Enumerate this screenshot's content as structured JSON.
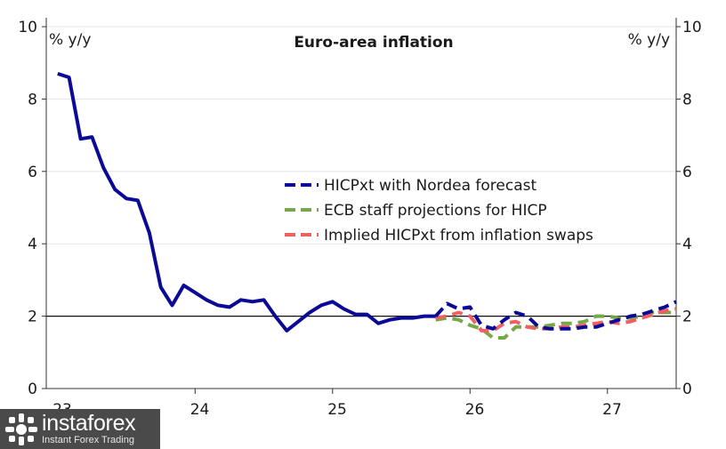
{
  "chart_data": {
    "type": "line",
    "title": "Euro-area inflation",
    "ylabel_left": "% y/y",
    "ylabel_right": "% y/y",
    "ylim": [
      0,
      10
    ],
    "yticks": [
      0,
      2,
      4,
      6,
      8,
      10
    ],
    "xlim": [
      2022.917,
      2027.5
    ],
    "xtick_labels": [
      {
        "label": "23",
        "x": 2023.5
      },
      {
        "label": "24",
        "x": 2024.5
      },
      {
        "label": "25",
        "x": 2025.5
      },
      {
        "label": "26",
        "x": 2026.5
      },
      {
        "label": "27",
        "x": 2027.5
      }
    ],
    "year_boundaries": [
      2024.0,
      2025.0,
      2026.0,
      2027.0,
      2028.0
    ],
    "reference_line_y": 2,
    "legend_position": "center-right",
    "series": [
      {
        "name": "HICPxt with Nordea forecast",
        "color": "#0a0a96",
        "style": "solid",
        "x": [
          2023.0,
          2023.083,
          2023.167,
          2023.25,
          2023.333,
          2023.417,
          2023.5,
          2023.583,
          2023.667,
          2023.75,
          2023.833,
          2023.917,
          2024.0,
          2024.083,
          2024.167,
          2024.25,
          2024.333,
          2024.417,
          2024.5,
          2024.583,
          2024.667,
          2024.75,
          2024.833,
          2024.917,
          2025.0,
          2025.083,
          2025.167,
          2025.25,
          2025.333,
          2025.417,
          2025.5,
          2025.583,
          2025.667,
          2025.75
        ],
        "values": [
          8.7,
          8.6,
          6.9,
          6.95,
          6.1,
          5.5,
          5.25,
          5.2,
          4.3,
          2.8,
          2.3,
          2.85,
          2.65,
          2.45,
          2.3,
          2.25,
          2.45,
          2.4,
          2.45,
          2.0,
          1.6,
          1.85,
          2.1,
          2.3,
          2.4,
          2.2,
          2.05,
          2.05,
          1.8,
          1.9,
          1.95,
          1.95,
          2.0,
          2.0
        ]
      },
      {
        "name": "HICPxt with Nordea forecast",
        "color": "#0a0a96",
        "style": "dashed",
        "x": [
          2025.75,
          2025.833,
          2025.917,
          2026.0,
          2026.083,
          2026.167,
          2026.25,
          2026.333,
          2026.417,
          2026.5,
          2026.583,
          2026.667,
          2026.75,
          2026.833,
          2026.917,
          2027.0,
          2027.083,
          2027.167,
          2027.25,
          2027.333,
          2027.417,
          2027.5
        ],
        "values": [
          2.0,
          2.35,
          2.2,
          2.25,
          1.75,
          1.65,
          1.9,
          2.1,
          2.0,
          1.7,
          1.65,
          1.65,
          1.65,
          1.7,
          1.7,
          1.8,
          1.9,
          2.0,
          2.05,
          2.15,
          2.25,
          2.4
        ]
      },
      {
        "name": "ECB staff projections for HICP",
        "color": "#76a849",
        "style": "dashed",
        "x": [
          2025.75,
          2025.833,
          2025.917,
          2026.0,
          2026.083,
          2026.167,
          2026.25,
          2026.333,
          2026.417,
          2026.5,
          2026.583,
          2026.667,
          2026.75,
          2026.833,
          2026.917,
          2027.0,
          2027.083,
          2027.167,
          2027.25,
          2027.333,
          2027.417,
          2027.5
        ],
        "values": [
          1.9,
          1.95,
          1.9,
          1.75,
          1.65,
          1.4,
          1.4,
          1.7,
          1.7,
          1.7,
          1.75,
          1.8,
          1.8,
          1.85,
          2.0,
          2.0,
          1.95,
          1.95,
          2.0,
          2.1,
          2.1,
          2.1
        ]
      },
      {
        "name": "Implied HICPxt from inflation swaps",
        "color": "#f06060",
        "style": "dashed",
        "x": [
          2025.75,
          2025.833,
          2025.917,
          2026.0,
          2026.083,
          2026.167,
          2026.25,
          2026.333,
          2026.417,
          2026.5,
          2026.583,
          2026.667,
          2026.75,
          2026.833,
          2026.917,
          2027.0,
          2027.083,
          2027.167,
          2027.25,
          2027.333,
          2027.417,
          2027.5
        ],
        "values": [
          1.95,
          2.0,
          2.1,
          2.0,
          1.6,
          1.6,
          1.8,
          1.85,
          1.7,
          1.65,
          1.65,
          1.7,
          1.7,
          1.75,
          1.8,
          1.85,
          1.8,
          1.85,
          1.95,
          2.05,
          2.15,
          2.2
        ]
      }
    ],
    "legend": [
      {
        "label": "HICPxt with Nordea forecast",
        "color": "#0a0a96"
      },
      {
        "label": "ECB staff projections for HICP",
        "color": "#76a849"
      },
      {
        "label": "Implied HICPxt from inflation swaps",
        "color": "#f06060"
      }
    ]
  },
  "watermark": {
    "brand": "instaforex",
    "tagline": "Instant Forex Trading",
    "icon": "instaforex-logo-icon",
    "background": "#4a4a4a"
  }
}
